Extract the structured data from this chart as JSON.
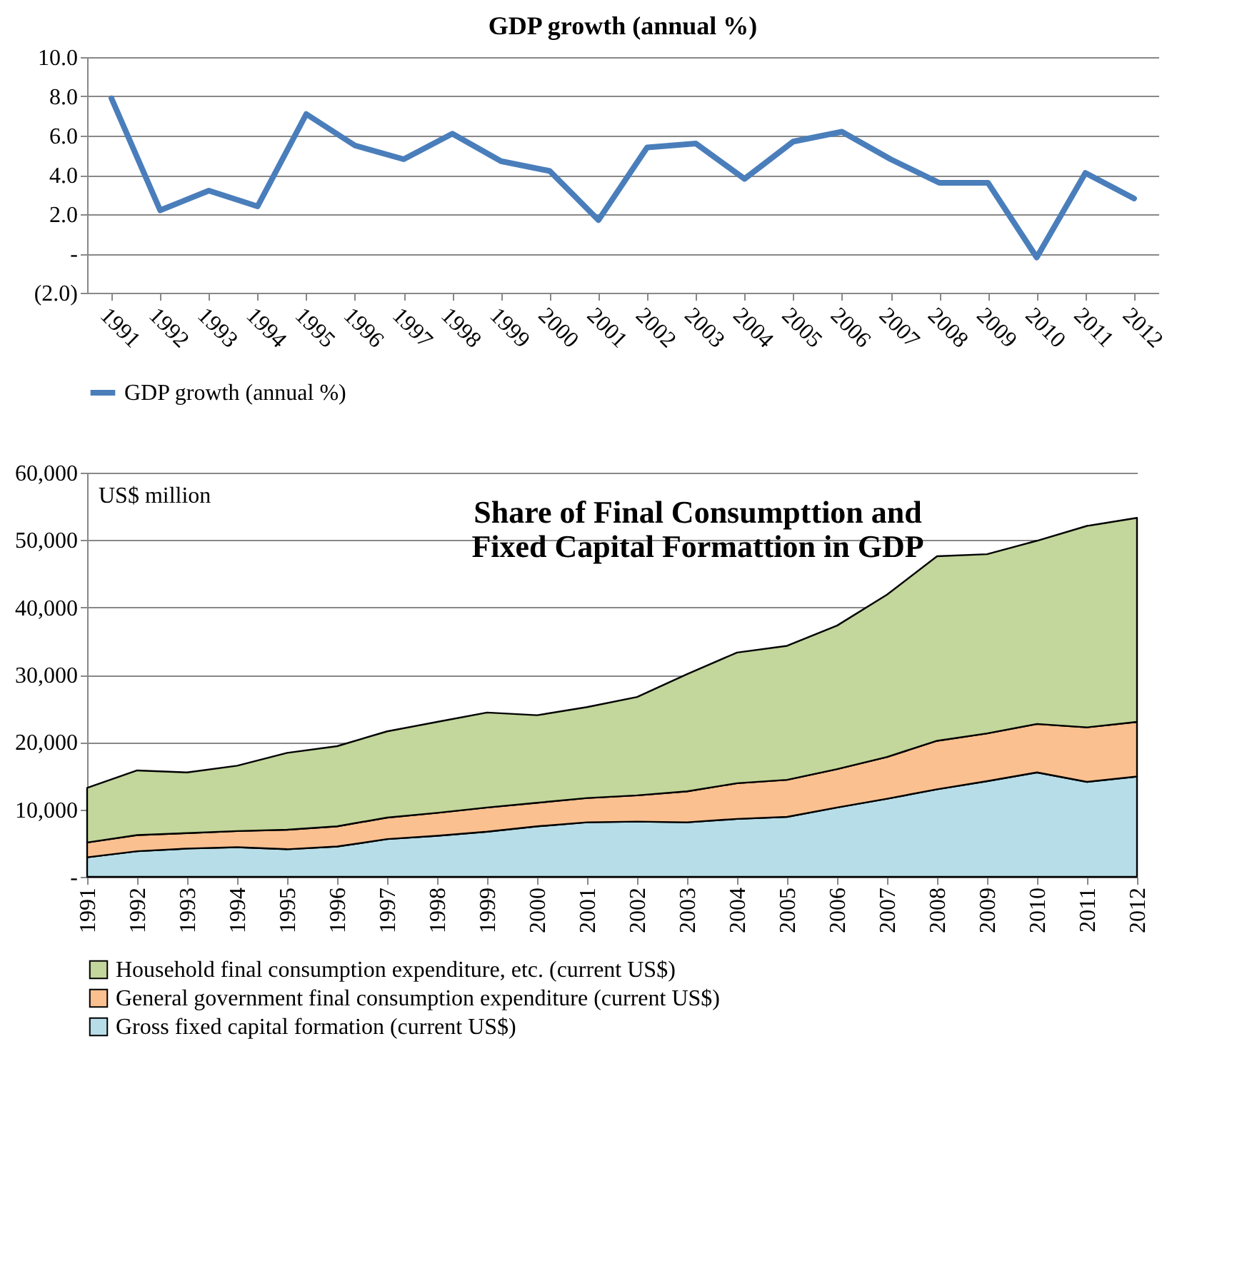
{
  "chart_data": [
    {
      "type": "line",
      "title": "GDP growth (annual %)",
      "categories": [
        "1991",
        "1992",
        "1993",
        "1994",
        "1995",
        "1996",
        "1997",
        "1998",
        "1999",
        "2000",
        "2001",
        "2002",
        "2003",
        "2004",
        "2005",
        "2006",
        "2007",
        "2008",
        "2009",
        "2010",
        "2011",
        "2012"
      ],
      "series": [
        {
          "name": "GDP growth (annual %)",
          "color": "#4a7ebb",
          "values": [
            7.9,
            2.2,
            3.2,
            2.4,
            7.1,
            5.5,
            4.8,
            6.1,
            4.7,
            4.2,
            1.7,
            5.4,
            5.6,
            3.8,
            5.7,
            6.2,
            4.8,
            3.6,
            3.6,
            -0.2,
            4.1,
            2.8
          ]
        }
      ],
      "ylim": [
        -2,
        10
      ],
      "yticks": [
        {
          "value": -2,
          "label": "(2.0)"
        },
        {
          "value": 0,
          "label": "-"
        },
        {
          "value": 2,
          "label": "2.0"
        },
        {
          "value": 4,
          "label": "4.0"
        },
        {
          "value": 6,
          "label": "6.0"
        },
        {
          "value": 8,
          "label": "8.0"
        },
        {
          "value": 10,
          "label": "10.0"
        }
      ],
      "grid": "y",
      "legend": "bottom"
    },
    {
      "type": "area",
      "stacked": true,
      "title": "Share of Final Consumpttion and\nFixed Capital Formattion in GDP",
      "annotations": [
        "US$ million"
      ],
      "categories": [
        "1991",
        "1992",
        "1993",
        "1994",
        "1995",
        "1996",
        "1997",
        "1998",
        "1999",
        "2000",
        "2001",
        "2002",
        "2003",
        "2004",
        "2005",
        "2006",
        "2007",
        "2008",
        "2009",
        "2010",
        "2011",
        "2012"
      ],
      "series": [
        {
          "name": "Gross fixed capital formation (current US$)",
          "color": "#b7dee8",
          "values": [
            2900,
            3800,
            4200,
            4400,
            4100,
            4500,
            5600,
            6100,
            6700,
            7500,
            8100,
            8200,
            8100,
            8600,
            8900,
            10300,
            11600,
            13000,
            14200,
            15500,
            14100,
            14900
          ]
        },
        {
          "name": "General government final consumption expenditure (current US$)",
          "color": "#fac090",
          "values": [
            2200,
            2400,
            2300,
            2400,
            2900,
            3000,
            3200,
            3400,
            3600,
            3500,
            3600,
            3900,
            4600,
            5300,
            5500,
            5700,
            6200,
            7200,
            7100,
            7200,
            8100,
            8100
          ]
        },
        {
          "name": "Household final consumption expenditure, etc. (current US$)",
          "color": "#c3d69b",
          "values": [
            8100,
            9600,
            9000,
            9700,
            11400,
            11900,
            12800,
            13500,
            14100,
            13000,
            13500,
            14600,
            17400,
            19400,
            19900,
            21300,
            24100,
            27400,
            26600,
            27200,
            29900,
            30300
          ]
        }
      ],
      "ylim": [
        0,
        60000
      ],
      "yticks": [
        {
          "value": 0,
          "label": "-"
        },
        {
          "value": 10000,
          "label": "10,000"
        },
        {
          "value": 20000,
          "label": "20,000"
        },
        {
          "value": 30000,
          "label": "30,000"
        },
        {
          "value": 40000,
          "label": "40,000"
        },
        {
          "value": 50000,
          "label": "50,000"
        },
        {
          "value": 60000,
          "label": "60,000"
        }
      ],
      "grid": "y",
      "legend": "bottom"
    }
  ]
}
